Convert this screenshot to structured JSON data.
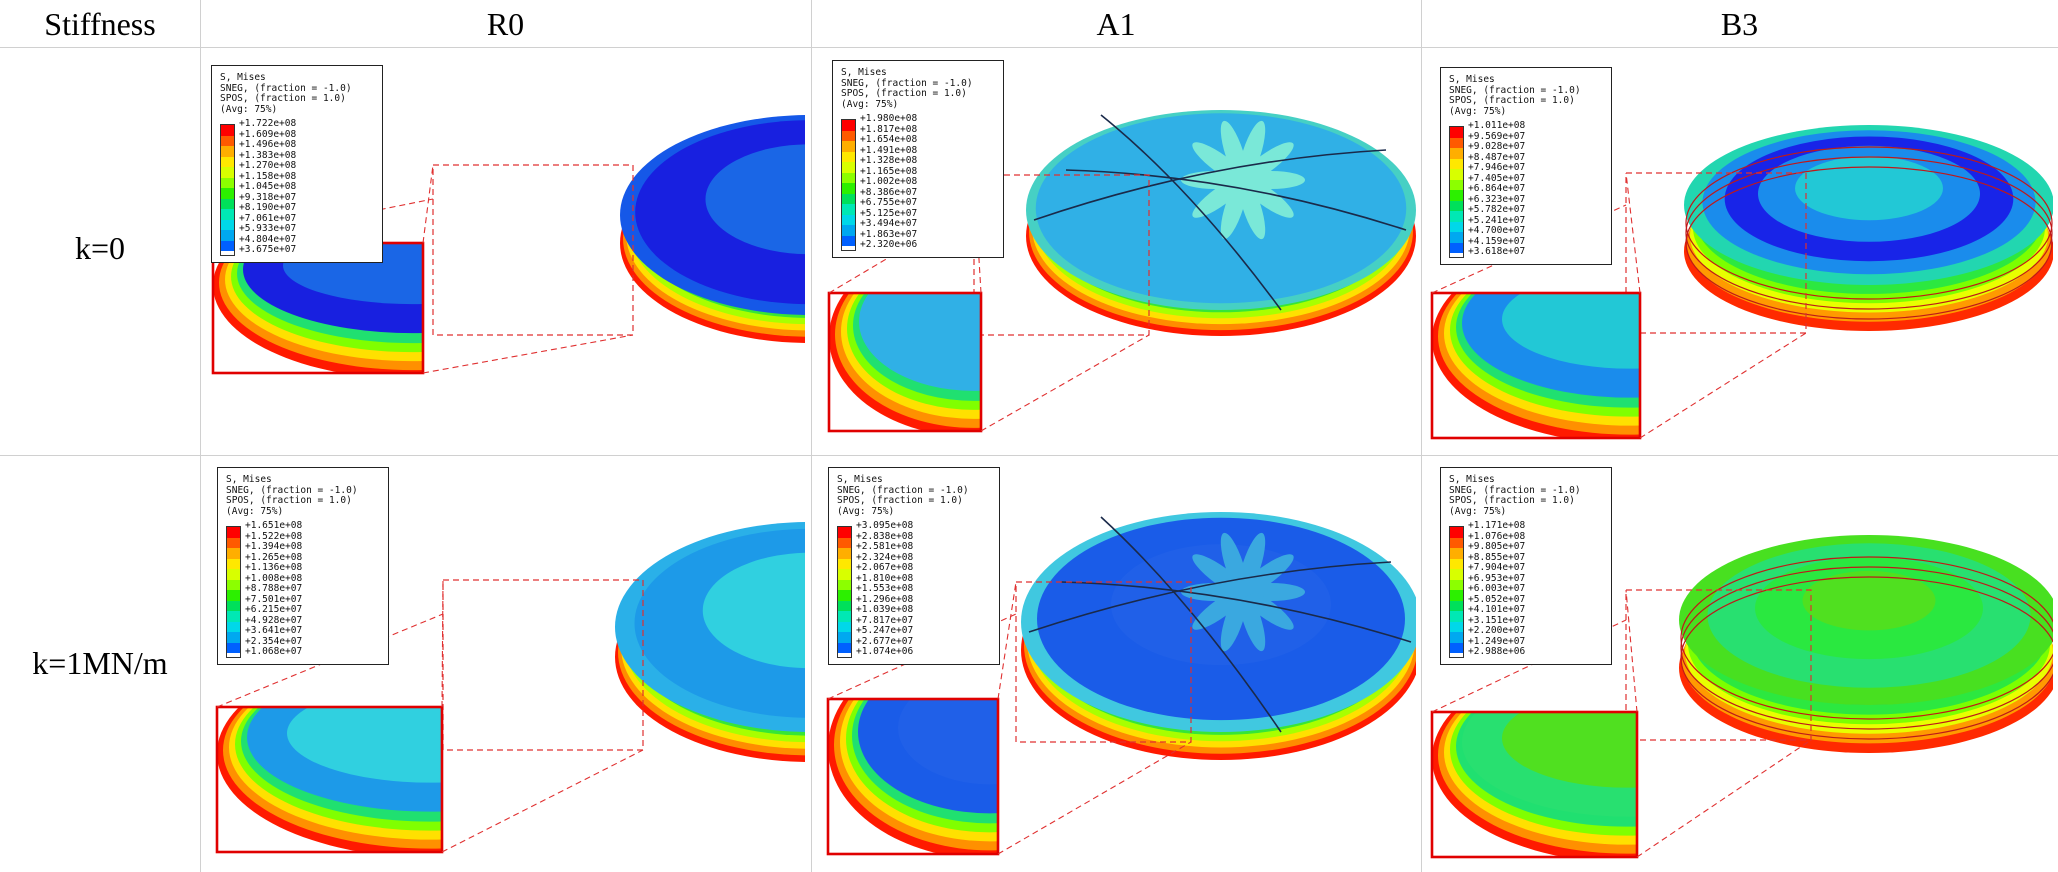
{
  "table": {
    "corner_header": "Stiffness",
    "column_headers": [
      "R0",
      "A1",
      "B3"
    ],
    "row_labels": [
      "k=0",
      "k=1MN/m"
    ]
  },
  "legend_title_lines": [
    "S, Mises",
    "SNEG, (fraction = -1.0)",
    "SPOS, (fraction = 1.0)",
    "(Avg: 75%)"
  ],
  "legend_colors": [
    "#ff0000",
    "#ff5a00",
    "#ffae00",
    "#ffe800",
    "#d8ff00",
    "#8cff00",
    "#2cf000",
    "#00e05a",
    "#00e8b4",
    "#00d8e8",
    "#00a8f0",
    "#0060ff",
    "#0010f0"
  ],
  "cells": [
    {
      "id": "r0-k0",
      "values": [
        "+1.722e+08",
        "+1.609e+08",
        "+1.496e+08",
        "+1.383e+08",
        "+1.270e+08",
        "+1.158e+08",
        "+1.045e+08",
        "+9.318e+07",
        "+8.190e+07",
        "+7.061e+07",
        "+5.933e+07",
        "+4.804e+07",
        "+3.675e+07"
      ],
      "top_color": "#1a1ee0",
      "mid_color": "#1d6fe0",
      "theme": "r0a"
    },
    {
      "id": "a1-k0",
      "values": [
        "+1.980e+08",
        "+1.817e+08",
        "+1.654e+08",
        "+1.491e+08",
        "+1.328e+08",
        "+1.165e+08",
        "+1.002e+08",
        "+8.386e+07",
        "+6.755e+07",
        "+5.125e+07",
        "+3.494e+07",
        "+1.863e+07",
        "+2.320e+06"
      ],
      "top_color": "#2fa8e0",
      "mid_color": "#40c8d8",
      "theme": "a1a"
    },
    {
      "id": "b3-k0",
      "values": [
        "+1.011e+08",
        "+9.569e+07",
        "+9.028e+07",
        "+8.487e+07",
        "+7.946e+07",
        "+7.405e+07",
        "+6.864e+07",
        "+6.323e+07",
        "+5.782e+07",
        "+5.241e+07",
        "+4.700e+07",
        "+4.159e+07",
        "+3.618e+07"
      ],
      "top_color": "#23c8e8",
      "mid_color": "#1a40e8",
      "theme": "b3a"
    },
    {
      "id": "r0-k1",
      "values": [
        "+1.651e+08",
        "+1.522e+08",
        "+1.394e+08",
        "+1.265e+08",
        "+1.136e+08",
        "+1.008e+08",
        "+8.788e+07",
        "+7.501e+07",
        "+6.215e+07",
        "+4.928e+07",
        "+3.641e+07",
        "+2.354e+07",
        "+1.068e+07"
      ],
      "top_color": "#2ec6e0",
      "mid_color": "#1e98e6",
      "theme": "r0b"
    },
    {
      "id": "a1-k1",
      "values": [
        "+3.095e+08",
        "+2.838e+08",
        "+2.581e+08",
        "+2.324e+08",
        "+2.067e+08",
        "+1.810e+08",
        "+1.553e+08",
        "+1.296e+08",
        "+1.039e+08",
        "+7.817e+07",
        "+5.247e+07",
        "+2.677e+07",
        "+1.074e+06"
      ],
      "top_color": "#2fa8e0",
      "mid_color": "#1c4ce8",
      "theme": "a1b"
    },
    {
      "id": "b3-k1",
      "values": [
        "+1.171e+08",
        "+1.076e+08",
        "+9.805e+07",
        "+8.855e+07",
        "+7.904e+07",
        "+6.953e+07",
        "+6.003e+07",
        "+5.052e+07",
        "+4.101e+07",
        "+3.151e+07",
        "+2.200e+07",
        "+1.249e+07",
        "+2.988e+06"
      ],
      "top_color": "#3ad820",
      "mid_color": "#16e8a0",
      "theme": "b3b"
    }
  ]
}
